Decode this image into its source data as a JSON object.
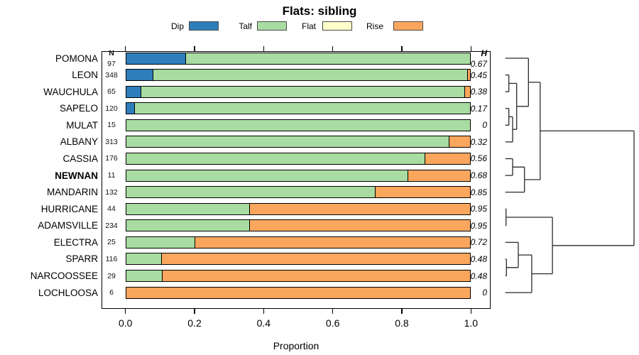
{
  "title": "Flats: sibling",
  "legend": {
    "items": [
      {
        "label": "Dip",
        "color": "#2E7EBC"
      },
      {
        "label": "Talf",
        "color": "#A9DCA2"
      },
      {
        "label": "Flat",
        "color": "#FFFFCB"
      },
      {
        "label": "Rise",
        "color": "#FBA65D"
      }
    ]
  },
  "columns": {
    "n_header": "N",
    "h_header": "H"
  },
  "chart_data": {
    "type": "bar",
    "orientation": "horizontal-stacked",
    "title": "Flats: sibling",
    "xlabel": "Proportion",
    "xlim": [
      0,
      1
    ],
    "x_tick_labels": [
      "0.0",
      "0.2",
      "0.4",
      "0.6",
      "0.8",
      "1.0"
    ],
    "x_tick_values": [
      0.0,
      0.2,
      0.4,
      0.6,
      0.8,
      1.0
    ],
    "grid": false,
    "legend_position": "top",
    "series_keys": [
      "dip",
      "talf",
      "flat",
      "rise"
    ],
    "series_colors": {
      "dip": "#2E7EBC",
      "talf": "#A9DCA2",
      "flat": "#FFFFCB",
      "rise": "#FBA65D"
    },
    "rows": [
      {
        "label": "POMONA",
        "bold": false,
        "n": "97",
        "h": "0.67",
        "dip": 0.175,
        "talf": 0.825,
        "flat": 0,
        "rise": 0
      },
      {
        "label": "LEON",
        "bold": false,
        "n": "348",
        "h": "0.45",
        "dip": 0.08,
        "talf": 0.913,
        "flat": 0,
        "rise": 0.007
      },
      {
        "label": "WAUCHULA",
        "bold": false,
        "n": "65",
        "h": "0.38",
        "dip": 0.045,
        "talf": 0.94,
        "flat": 0,
        "rise": 0.015
      },
      {
        "label": "SAPELO",
        "bold": false,
        "n": "120",
        "h": "0.17",
        "dip": 0.025,
        "talf": 0.975,
        "flat": 0,
        "rise": 0
      },
      {
        "label": "MULAT",
        "bold": false,
        "n": "15",
        "h": "0",
        "dip": 0,
        "talf": 1.0,
        "flat": 0,
        "rise": 0
      },
      {
        "label": "ALBANY",
        "bold": false,
        "n": "313",
        "h": "0.32",
        "dip": 0,
        "talf": 0.94,
        "flat": 0,
        "rise": 0.06
      },
      {
        "label": "CASSIA",
        "bold": false,
        "n": "176",
        "h": "0.56",
        "dip": 0,
        "talf": 0.87,
        "flat": 0,
        "rise": 0.13
      },
      {
        "label": "NEWNAN",
        "bold": true,
        "n": "11",
        "h": "0.68",
        "dip": 0,
        "talf": 0.82,
        "flat": 0,
        "rise": 0.18
      },
      {
        "label": "MANDARIN",
        "bold": false,
        "n": "132",
        "h": "0.85",
        "dip": 0,
        "talf": 0.725,
        "flat": 0,
        "rise": 0.275
      },
      {
        "label": "HURRICANE",
        "bold": false,
        "n": "44",
        "h": "0.95",
        "dip": 0,
        "talf": 0.36,
        "flat": 0,
        "rise": 0.64
      },
      {
        "label": "ADAMSVILLE",
        "bold": false,
        "n": "234",
        "h": "0.95",
        "dip": 0,
        "talf": 0.36,
        "flat": 0,
        "rise": 0.64
      },
      {
        "label": "ELECTRA",
        "bold": false,
        "n": "25",
        "h": "0.72",
        "dip": 0,
        "talf": 0.2,
        "flat": 0,
        "rise": 0.8
      },
      {
        "label": "SPARR",
        "bold": false,
        "n": "116",
        "h": "0.48",
        "dip": 0,
        "talf": 0.103,
        "flat": 0,
        "rise": 0.897
      },
      {
        "label": "NARCOOSSEE",
        "bold": false,
        "n": "29",
        "h": "0.48",
        "dip": 0,
        "talf": 0.105,
        "flat": 0,
        "rise": 0.895
      },
      {
        "label": "LOCHLOOSA",
        "bold": false,
        "n": "6",
        "h": "0",
        "dip": 0,
        "talf": 0,
        "flat": 0,
        "rise": 1.0
      }
    ],
    "dendrogram": {
      "note": "heights normalized 0-1, leaves are row indices",
      "tree": {
        "h": 1.0,
        "c": [
          {
            "h": 0.271,
            "c": [
              {
                "h": 0.18,
                "c": [
                  {
                    "leaf": 0
                  },
                  {
                    "h": 0.0883,
                    "c": [
                      {
                        "h": 0.0276,
                        "c": [
                          {
                            "leaf": 1
                          },
                          {
                            "leaf": 2
                          }
                        ]
                      },
                      {
                        "h": 0.0568,
                        "c": [
                          {
                            "h": 0.0276,
                            "c": [
                              {
                                "leaf": 3
                              },
                              {
                                "leaf": 4
                              }
                            ]
                          },
                          {
                            "leaf": 5
                          }
                        ]
                      }
                    ]
                  }
                ]
              },
              {
                "h": 0.149,
                "c": [
                  {
                    "h": 0.0568,
                    "c": [
                      {
                        "leaf": 6
                      },
                      {
                        "leaf": 7
                      }
                    ]
                  },
                  {
                    "leaf": 8
                  }
                ]
              }
            ]
          },
          {
            "h": 0.366,
            "c": [
              {
                "h": 0.0055,
                "c": [
                  {
                    "leaf": 9
                  },
                  {
                    "leaf": 10
                  }
                ]
              },
              {
                "h": 0.205,
                "c": [
                  {
                    "h": 0.101,
                    "c": [
                      {
                        "leaf": 11
                      },
                      {
                        "h": 0.0088,
                        "c": [
                          {
                            "leaf": 12
                          },
                          {
                            "leaf": 13
                          }
                        ]
                      }
                    ]
                  },
                  {
                    "leaf": 14
                  }
                ]
              }
            ]
          }
        ]
      }
    }
  }
}
